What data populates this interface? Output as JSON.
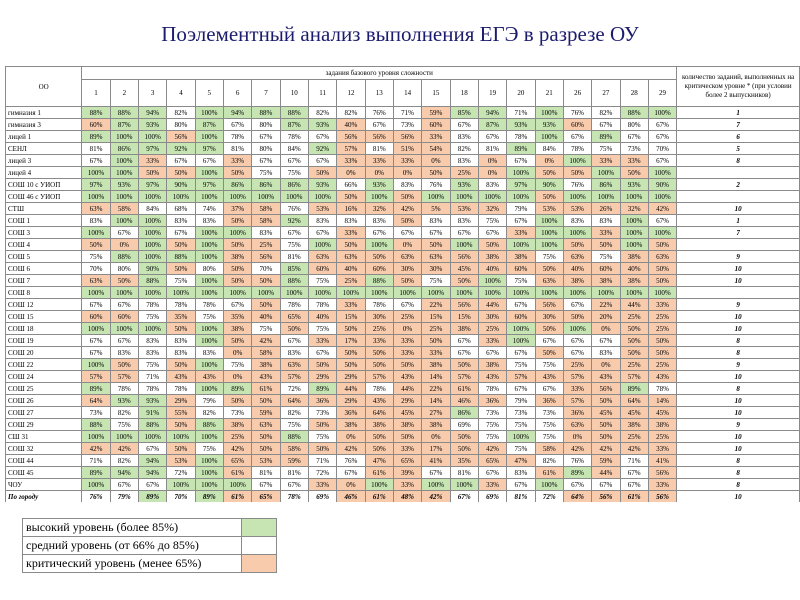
{
  "title": "Поэлементный анализ выполнения ЕГЭ в разрезе ОУ",
  "table": {
    "corner": "ОО",
    "group": "задания базового уровня сложности",
    "last_header": "количество заданий, выполненных на критическом уровне * (при условии более 2 выпускников)",
    "tasks": [
      "1",
      "2",
      "3",
      "4",
      "5",
      "6",
      "7",
      "10",
      "11",
      "12",
      "13",
      "14",
      "15",
      "18",
      "19",
      "20",
      "21",
      "26",
      "27",
      "28",
      "29"
    ],
    "rows": [
      {
        "name": "гимназия 1",
        "cells": [
          "88%",
          "88%",
          "94%",
          "82%",
          "100%",
          "94%",
          "88%",
          "88%",
          "82%",
          "82%",
          "76%",
          "71%",
          "59%",
          "85%",
          "94%",
          "71%",
          "100%",
          "76%",
          "82%",
          "88%",
          "100%"
        ],
        "count": "1"
      },
      {
        "name": "гимназия 3",
        "cells": [
          "60%",
          "87%",
          "93%",
          "80%",
          "87%",
          "67%",
          "80%",
          "87%",
          "93%",
          "40%",
          "67%",
          "73%",
          "60%",
          "67%",
          "87%",
          "93%",
          "93%",
          "60%",
          "67%",
          "80%",
          "67%"
        ],
        "count": "7"
      },
      {
        "name": "лицей 1",
        "cells": [
          "89%",
          "100%",
          "100%",
          "56%",
          "100%",
          "78%",
          "67%",
          "78%",
          "67%",
          "56%",
          "56%",
          "56%",
          "33%",
          "83%",
          "67%",
          "78%",
          "100%",
          "67%",
          "89%",
          "67%",
          "67%"
        ],
        "count": "6"
      },
      {
        "name": "СЕНЛ",
        "cells": [
          "81%",
          "86%",
          "97%",
          "92%",
          "97%",
          "81%",
          "80%",
          "84%",
          "92%",
          "57%",
          "81%",
          "51%",
          "54%",
          "82%",
          "81%",
          "89%",
          "84%",
          "78%",
          "75%",
          "73%",
          "70%"
        ],
        "count": "5"
      },
      {
        "name": "лицей 3",
        "cells": [
          "67%",
          "100%",
          "33%",
          "67%",
          "67%",
          "33%",
          "67%",
          "67%",
          "67%",
          "33%",
          "33%",
          "33%",
          "0%",
          "83%",
          "0%",
          "67%",
          "0%",
          "100%",
          "33%",
          "33%",
          "67%"
        ],
        "count": "8"
      },
      {
        "name": "лицей 4",
        "cells": [
          "100%",
          "100%",
          "50%",
          "50%",
          "100%",
          "50%",
          "75%",
          "75%",
          "50%",
          "0%",
          "0%",
          "0%",
          "50%",
          "25%",
          "0%",
          "100%",
          "50%",
          "50%",
          "100%",
          "50%",
          "100%"
        ],
        "count": null
      },
      {
        "name": "СОШ 10 с УИОП",
        "cells": [
          "97%",
          "93%",
          "97%",
          "90%",
          "97%",
          "86%",
          "86%",
          "86%",
          "93%",
          "66%",
          "93%",
          "83%",
          "76%",
          "93%",
          "83%",
          "97%",
          "90%",
          "76%",
          "86%",
          "93%",
          "90%"
        ],
        "count": "2"
      },
      {
        "name": "СОШ 46 с УИОП",
        "cells": [
          "100%",
          "100%",
          "100%",
          "100%",
          "100%",
          "100%",
          "100%",
          "100%",
          "100%",
          "50%",
          "100%",
          "50%",
          "100%",
          "100%",
          "100%",
          "100%",
          "50%",
          "100%",
          "100%",
          "100%",
          "100%"
        ],
        "count": null
      },
      {
        "name": "СТШ",
        "cells": [
          "63%",
          "58%",
          "84%",
          "68%",
          "74%",
          "37%",
          "58%",
          "76%",
          "53%",
          "16%",
          "32%",
          "42%",
          "5%",
          "53%",
          "32%",
          "79%",
          "53%",
          "53%",
          "26%",
          "32%",
          "42%"
        ],
        "count": "10"
      },
      {
        "name": "СОШ 1",
        "cells": [
          "83%",
          "100%",
          "100%",
          "83%",
          "83%",
          "50%",
          "58%",
          "92%",
          "83%",
          "83%",
          "83%",
          "50%",
          "83%",
          "83%",
          "75%",
          "67%",
          "100%",
          "83%",
          "83%",
          "100%",
          "67%"
        ],
        "count": "1"
      },
      {
        "name": "СОШ 3",
        "cells": [
          "100%",
          "67%",
          "100%",
          "67%",
          "100%",
          "100%",
          "83%",
          "67%",
          "67%",
          "33%",
          "67%",
          "67%",
          "67%",
          "67%",
          "67%",
          "33%",
          "100%",
          "100%",
          "33%",
          "100%",
          "100%"
        ],
        "count": "7"
      },
      {
        "name": "СОШ 4",
        "cells": [
          "50%",
          "0%",
          "100%",
          "50%",
          "100%",
          "50%",
          "25%",
          "75%",
          "100%",
          "50%",
          "100%",
          "0%",
          "50%",
          "100%",
          "50%",
          "100%",
          "100%",
          "50%",
          "50%",
          "100%",
          "50%"
        ],
        "count": null
      },
      {
        "name": "СОШ 5",
        "cells": [
          "75%",
          "88%",
          "100%",
          "88%",
          "100%",
          "38%",
          "56%",
          "81%",
          "63%",
          "63%",
          "50%",
          "63%",
          "63%",
          "56%",
          "38%",
          "38%",
          "75%",
          "63%",
          "75%",
          "38%",
          "63%"
        ],
        "count": "9"
      },
      {
        "name": "СОШ 6",
        "cells": [
          "70%",
          "80%",
          "90%",
          "50%",
          "80%",
          "50%",
          "70%",
          "85%",
          "60%",
          "40%",
          "60%",
          "30%",
          "30%",
          "45%",
          "40%",
          "60%",
          "50%",
          "40%",
          "60%",
          "40%",
          "50%"
        ],
        "count": "10"
      },
      {
        "name": "СОШ 7",
        "cells": [
          "63%",
          "50%",
          "88%",
          "75%",
          "100%",
          "50%",
          "50%",
          "88%",
          "75%",
          "25%",
          "88%",
          "50%",
          "75%",
          "50%",
          "100%",
          "75%",
          "63%",
          "38%",
          "38%",
          "38%",
          "50%"
        ],
        "count": "10"
      },
      {
        "name": "СОШ 8",
        "cells": [
          "100%",
          "100%",
          "100%",
          "100%",
          "100%",
          "100%",
          "100%",
          "100%",
          "100%",
          "100%",
          "100%",
          "100%",
          "100%",
          "100%",
          "100%",
          "100%",
          "100%",
          "100%",
          "100%",
          "100%",
          "100%"
        ],
        "count": null
      },
      {
        "name": "СОШ 12",
        "cells": [
          "67%",
          "67%",
          "78%",
          "78%",
          "78%",
          "67%",
          "50%",
          "78%",
          "78%",
          "33%",
          "78%",
          "67%",
          "22%",
          "56%",
          "44%",
          "67%",
          "56%",
          "67%",
          "22%",
          "44%",
          "33%"
        ],
        "count": "9"
      },
      {
        "name": "СОШ 15",
        "cells": [
          "60%",
          "60%",
          "75%",
          "35%",
          "75%",
          "35%",
          "40%",
          "65%",
          "40%",
          "15%",
          "30%",
          "25%",
          "15%",
          "15%",
          "30%",
          "60%",
          "30%",
          "50%",
          "20%",
          "25%",
          "25%"
        ],
        "count": "10"
      },
      {
        "name": "СОШ 18",
        "cells": [
          "100%",
          "100%",
          "100%",
          "50%",
          "100%",
          "38%",
          "75%",
          "50%",
          "75%",
          "50%",
          "25%",
          "0%",
          "25%",
          "38%",
          "25%",
          "100%",
          "50%",
          "100%",
          "0%",
          "50%",
          "25%"
        ],
        "count": "10"
      },
      {
        "name": "СОШ 19",
        "cells": [
          "67%",
          "67%",
          "83%",
          "83%",
          "100%",
          "50%",
          "42%",
          "67%",
          "33%",
          "17%",
          "33%",
          "33%",
          "50%",
          "67%",
          "33%",
          "100%",
          "67%",
          "67%",
          "67%",
          "50%",
          "50%"
        ],
        "count": "8"
      },
      {
        "name": "СОШ 20",
        "cells": [
          "67%",
          "83%",
          "83%",
          "83%",
          "83%",
          "0%",
          "58%",
          "83%",
          "67%",
          "50%",
          "50%",
          "33%",
          "33%",
          "67%",
          "67%",
          "67%",
          "50%",
          "67%",
          "83%",
          "50%",
          "50%"
        ],
        "count": "8"
      },
      {
        "name": "СОШ 22",
        "cells": [
          "100%",
          "50%",
          "75%",
          "50%",
          "100%",
          "75%",
          "38%",
          "63%",
          "50%",
          "50%",
          "50%",
          "50%",
          "38%",
          "50%",
          "38%",
          "75%",
          "75%",
          "25%",
          "0%",
          "25%",
          "25%"
        ],
        "count": "9"
      },
      {
        "name": "СОШ 24",
        "cells": [
          "57%",
          "57%",
          "71%",
          "43%",
          "43%",
          "0%",
          "43%",
          "57%",
          "29%",
          "29%",
          "57%",
          "43%",
          "14%",
          "57%",
          "43%",
          "57%",
          "43%",
          "57%",
          "43%",
          "57%",
          "43%"
        ],
        "count": "10"
      },
      {
        "name": "СОШ 25",
        "cells": [
          "89%",
          "78%",
          "78%",
          "78%",
          "100%",
          "89%",
          "61%",
          "72%",
          "89%",
          "44%",
          "78%",
          "44%",
          "22%",
          "61%",
          "78%",
          "67%",
          "67%",
          "33%",
          "56%",
          "89%",
          "78%"
        ],
        "count": "8"
      },
      {
        "name": "СОШ 26",
        "cells": [
          "64%",
          "93%",
          "93%",
          "29%",
          "79%",
          "50%",
          "50%",
          "64%",
          "36%",
          "29%",
          "43%",
          "29%",
          "14%",
          "46%",
          "36%",
          "79%",
          "36%",
          "57%",
          "50%",
          "64%",
          "14%"
        ],
        "count": "10"
      },
      {
        "name": "СОШ 27",
        "cells": [
          "73%",
          "82%",
          "91%",
          "55%",
          "82%",
          "73%",
          "59%",
          "82%",
          "73%",
          "36%",
          "64%",
          "45%",
          "27%",
          "86%",
          "73%",
          "73%",
          "73%",
          "36%",
          "45%",
          "45%",
          "45%"
        ],
        "count": "10"
      },
      {
        "name": "СОШ 29",
        "cells": [
          "88%",
          "75%",
          "88%",
          "50%",
          "88%",
          "38%",
          "63%",
          "75%",
          "50%",
          "38%",
          "38%",
          "38%",
          "38%",
          "69%",
          "75%",
          "75%",
          "75%",
          "63%",
          "50%",
          "38%",
          "38%"
        ],
        "count": "9"
      },
      {
        "name": "СШ 31",
        "cells": [
          "100%",
          "100%",
          "100%",
          "100%",
          "100%",
          "25%",
          "50%",
          "88%",
          "75%",
          "0%",
          "50%",
          "50%",
          "0%",
          "50%",
          "75%",
          "100%",
          "75%",
          "0%",
          "50%",
          "25%",
          "25%"
        ],
        "count": "10"
      },
      {
        "name": "СОШ 32",
        "cells": [
          "42%",
          "42%",
          "67%",
          "50%",
          "75%",
          "42%",
          "50%",
          "58%",
          "50%",
          "42%",
          "50%",
          "33%",
          "17%",
          "50%",
          "42%",
          "75%",
          "58%",
          "42%",
          "42%",
          "42%",
          "33%"
        ],
        "count": "10"
      },
      {
        "name": "СОШ 44",
        "cells": [
          "71%",
          "82%",
          "94%",
          "53%",
          "100%",
          "65%",
          "53%",
          "59%",
          "71%",
          "76%",
          "47%",
          "65%",
          "41%",
          "35%",
          "65%",
          "47%",
          "82%",
          "76%",
          "59%",
          "71%",
          "41%"
        ],
        "count": "8"
      },
      {
        "name": "СОШ 45",
        "cells": [
          "89%",
          "94%",
          "94%",
          "72%",
          "100%",
          "61%",
          "81%",
          "81%",
          "72%",
          "67%",
          "61%",
          "39%",
          "67%",
          "81%",
          "67%",
          "83%",
          "61%",
          "89%",
          "44%",
          "67%",
          "56%"
        ],
        "count": "8"
      },
      {
        "name": "ЧОУ",
        "cells": [
          "100%",
          "67%",
          "67%",
          "100%",
          "100%",
          "100%",
          "67%",
          "67%",
          "33%",
          "0%",
          "100%",
          "33%",
          "100%",
          "100%",
          "33%",
          "67%",
          "100%",
          "67%",
          "67%",
          "67%",
          "33%"
        ],
        "count": "8"
      },
      {
        "name": "По городу",
        "cells": [
          "76%",
          "79%",
          "89%",
          "70%",
          "89%",
          "61%",
          "65%",
          "78%",
          "69%",
          "46%",
          "61%",
          "48%",
          "42%",
          "67%",
          "69%",
          "81%",
          "72%",
          "64%",
          "56%",
          "61%",
          "56%"
        ],
        "count": "10"
      }
    ]
  },
  "legend": [
    {
      "label": "высокий уровень (более 85%)",
      "color": "#c6e5b3",
      "from": 85
    },
    {
      "label": "средний уровень (от 66% до 85%)",
      "color": "#ffffff",
      "from": 66
    },
    {
      "label": "критический уровень (менее 65%)",
      "color": "#f8cbad"
    }
  ]
}
